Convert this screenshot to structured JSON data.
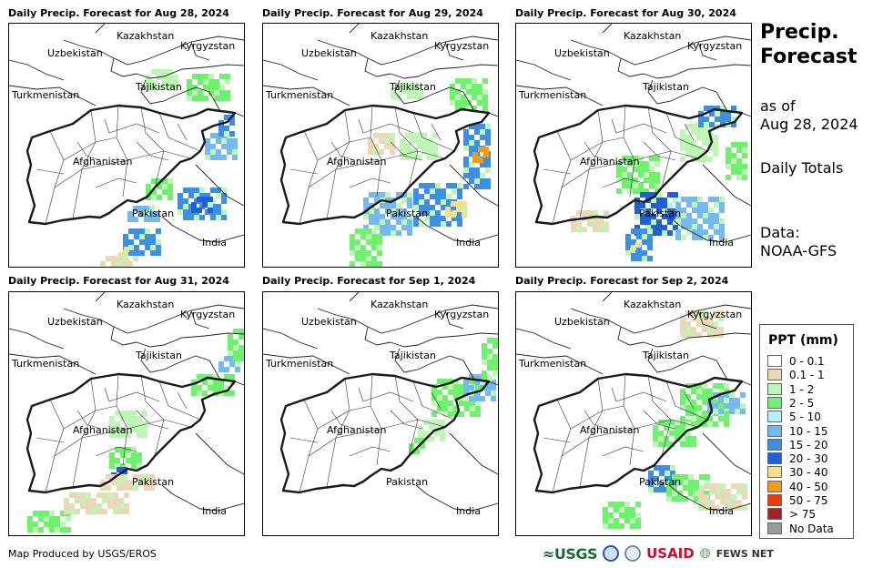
{
  "panels": [
    {
      "title": "Daily Precip. Forecast for Aug 28, 2024"
    },
    {
      "title": "Daily Precip. Forecast for Aug 29, 2024"
    },
    {
      "title": "Daily Precip. Forecast for Aug 30, 2024"
    },
    {
      "title": "Daily Precip. Forecast for Aug 31, 2024"
    },
    {
      "title": "Daily Precip. Forecast for Sep 1, 2024"
    },
    {
      "title": "Daily Precip. Forecast for Sep 2, 2024"
    }
  ],
  "country_labels": {
    "kazakhstan": "Kazakhstan",
    "kyrgyzstan": "Kyrgyzstan",
    "uzbekistan": "Uzbekistan",
    "tajikistan": "Tajikistan",
    "turkmenistan": "Turkmenistan",
    "afghanistan": "Afghanistan",
    "pakistan": "Pakistan",
    "india": "India"
  },
  "side": {
    "title_line1": "Precip.",
    "title_line2": "Forecast",
    "asof_line1": "as of",
    "asof_line2": "Aug 28, 2024",
    "totals": "Daily Totals",
    "data_line1": "Data:",
    "data_line2": "NOAA-GFS"
  },
  "legend": {
    "title": "PPT (mm)",
    "items": [
      {
        "label": "0 - 0.1",
        "color": "#ffffff"
      },
      {
        "label": "0.1 - 1",
        "color": "#ead9b8"
      },
      {
        "label": "1 - 2",
        "color": "#bff5b6"
      },
      {
        "label": "2 - 5",
        "color": "#6ff06f"
      },
      {
        "label": "5 - 10",
        "color": "#b4f0f6"
      },
      {
        "label": "10 - 15",
        "color": "#76b9ee"
      },
      {
        "label": "15 - 20",
        "color": "#3d8fe3"
      },
      {
        "label": "20 - 30",
        "color": "#1f5fd8"
      },
      {
        "label": "30 - 40",
        "color": "#f5e08a"
      },
      {
        "label": "40 - 50",
        "color": "#f29a1a"
      },
      {
        "label": "50 - 75",
        "color": "#e53c12"
      },
      {
        "label": "> 75",
        "color": "#a82020"
      },
      {
        "label": "No Data",
        "color": "#999999"
      }
    ]
  },
  "footer": {
    "credit": "Map Produced by USGS/EROS",
    "logo_usgs": "≈USGS",
    "logo_usaid_a": "US",
    "logo_usaid_b": "AID",
    "logo_fews": "FEWS NET"
  }
}
